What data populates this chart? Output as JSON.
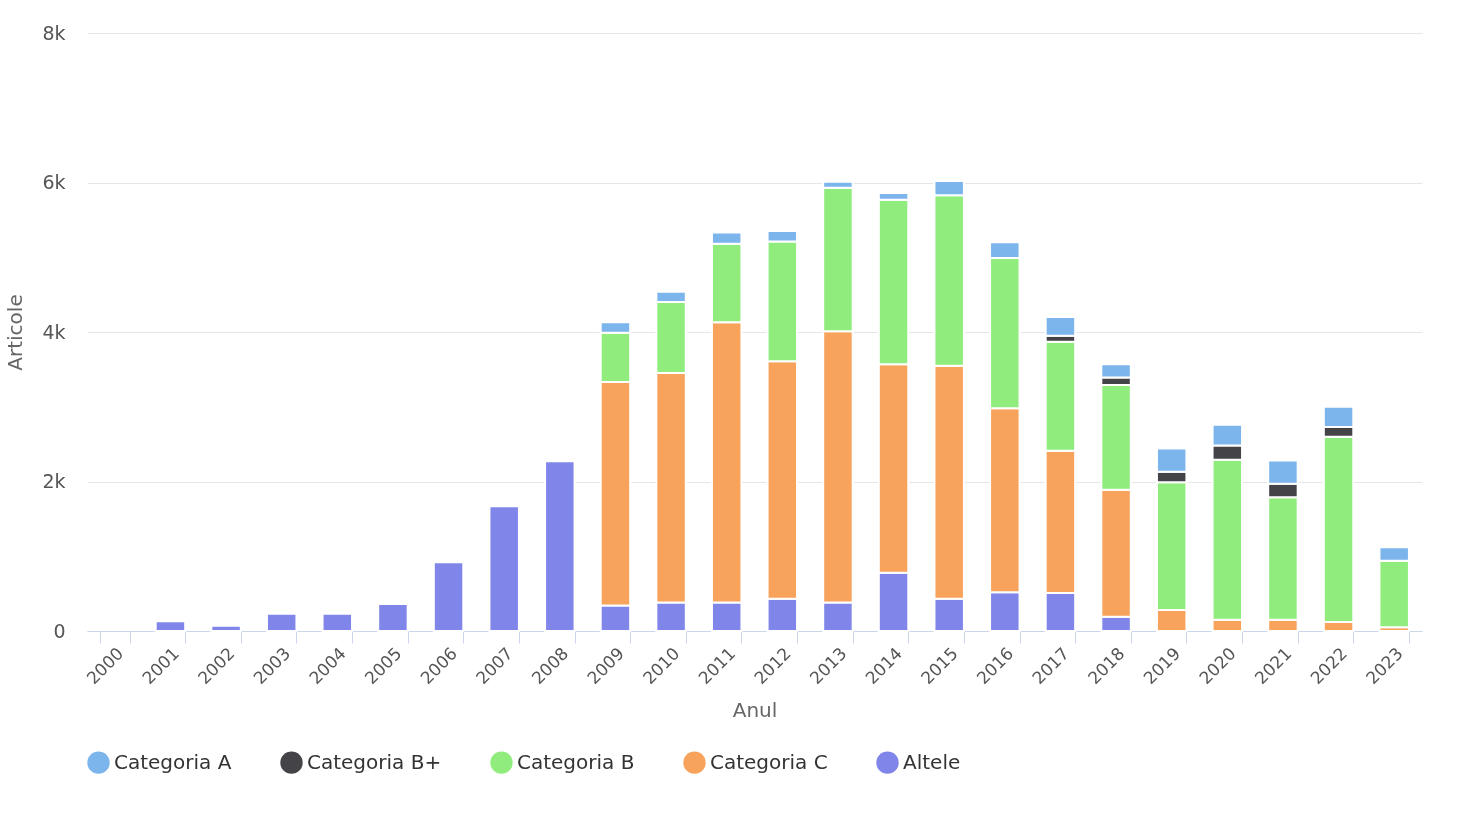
{
  "chart_data": {
    "type": "bar",
    "stacked": true,
    "xlabel": "Anul",
    "ylabel": "Articole",
    "categories": [
      "2000",
      "2001",
      "2002",
      "2003",
      "2004",
      "2005",
      "2006",
      "2007",
      "2008",
      "2009",
      "2010",
      "2011",
      "2012",
      "2013",
      "2014",
      "2015",
      "2016",
      "2017",
      "2018",
      "2019",
      "2020",
      "2021",
      "2022",
      "2023"
    ],
    "series": [
      {
        "name": "Altele",
        "color": "#8085e9",
        "values": [
          null,
          130,
          70,
          230,
          230,
          360,
          920,
          1670,
          2270,
          340,
          380,
          380,
          430,
          380,
          780,
          430,
          520,
          510,
          190,
          null,
          null,
          null,
          null,
          null
        ]
      },
      {
        "name": "Categoria C",
        "color": "#f7a35c",
        "values": [
          null,
          null,
          null,
          null,
          null,
          null,
          null,
          null,
          null,
          2990,
          3070,
          3750,
          3180,
          3630,
          2790,
          3120,
          2460,
          1900,
          1700,
          280,
          150,
          150,
          120,
          50
        ]
      },
      {
        "name": "Categoria B",
        "color": "#90ed7d",
        "values": [
          null,
          null,
          null,
          null,
          null,
          null,
          null,
          null,
          null,
          660,
          950,
          1050,
          1600,
          1920,
          2200,
          2280,
          2010,
          1460,
          1400,
          1710,
          2140,
          1640,
          2480,
          890
        ]
      },
      {
        "name": "Categoria B+",
        "color": "#434348",
        "values": [
          null,
          null,
          null,
          null,
          null,
          null,
          null,
          null,
          null,
          null,
          null,
          null,
          null,
          null,
          null,
          null,
          null,
          80,
          100,
          140,
          190,
          180,
          130,
          null
        ]
      },
      {
        "name": "Categoria A",
        "color": "#7cb5ec",
        "values": [
          null,
          null,
          null,
          null,
          null,
          null,
          null,
          null,
          null,
          140,
          140,
          150,
          140,
          80,
          90,
          190,
          210,
          250,
          180,
          310,
          280,
          310,
          270,
          180
        ]
      }
    ],
    "ylim": [
      0,
      8000
    ],
    "yticks": [
      0,
      {
        "value": 2000,
        "label": "2k"
      },
      {
        "value": 4000,
        "label": "4k"
      },
      {
        "value": 6000,
        "label": "6k"
      },
      {
        "value": 8000,
        "label": "8k"
      }
    ],
    "grid": "y",
    "legend": "bottom"
  }
}
